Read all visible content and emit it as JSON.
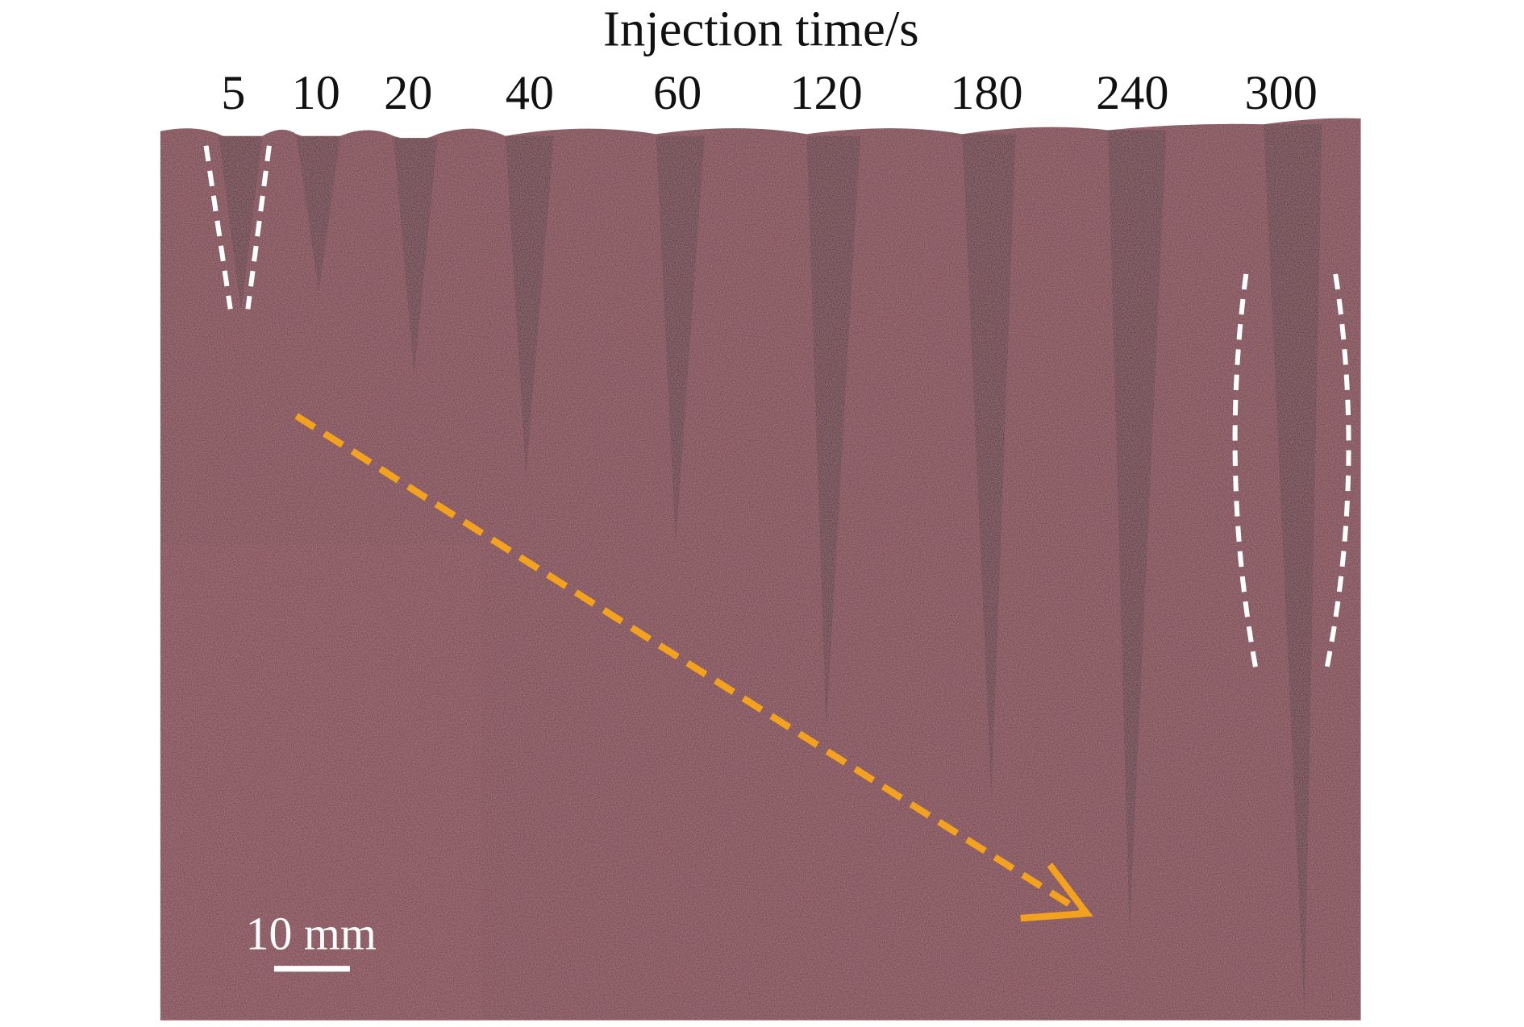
{
  "header": {
    "title": "Injection time/s"
  },
  "time_labels": [
    "5",
    "10",
    "20",
    "40",
    "60",
    "120",
    "180",
    "240",
    "300"
  ],
  "scale_bar": "10 mm"
}
